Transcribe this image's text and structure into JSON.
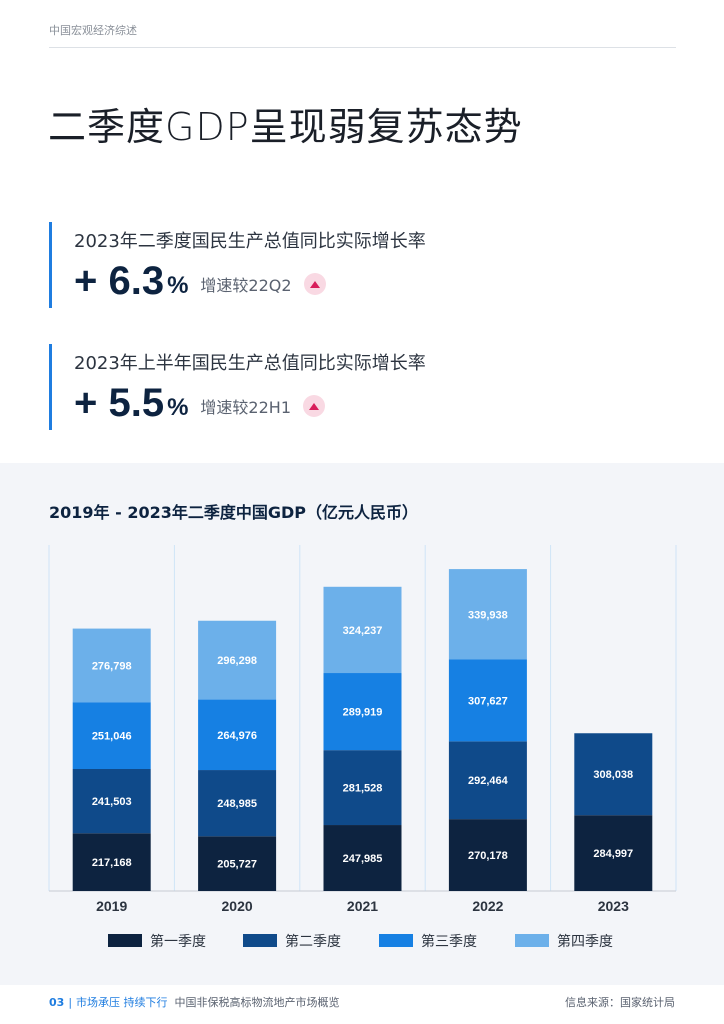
{
  "header": {
    "label": "中国宏观经济综述"
  },
  "page_title": "二季度GDP呈现弱复苏态势",
  "kpis": [
    {
      "caption": "2023年二季度国民生产总值同比实际增长率",
      "value": "+ 6.3",
      "unit": "%",
      "note": "增速较22Q2",
      "trend": "up"
    },
    {
      "caption": "2023年上半年国民生产总值同比实际增长率",
      "value": "+ 5.5",
      "unit": "%",
      "note": "增速较22H1",
      "trend": "up"
    }
  ],
  "colors": {
    "q1": "#0d2340",
    "q2": "#0f4a8a",
    "q3": "#1680e3",
    "q4": "#6cb0ea",
    "accent": "#1f7de0",
    "up": "#d81e5b",
    "grid": "#cfe4f7"
  },
  "chart_data": {
    "type": "bar",
    "stacked": true,
    "title": "2019年 - 2023年二季度中国GDP（亿元人民币）",
    "categories": [
      "2019",
      "2020",
      "2021",
      "2022",
      "2023"
    ],
    "series": [
      {
        "name": "第一季度",
        "values": [
          217168,
          205727,
          247985,
          270178,
          284997
        ]
      },
      {
        "name": "第二季度",
        "values": [
          241503,
          248985,
          281528,
          292464,
          308038
        ]
      },
      {
        "name": "第三季度",
        "values": [
          251046,
          264976,
          289919,
          307627,
          null
        ]
      },
      {
        "name": "第四季度",
        "values": [
          276798,
          296298,
          324237,
          339938,
          null
        ]
      }
    ],
    "legend_position": "bottom",
    "ylim": [
      0,
      1300000
    ]
  },
  "footer": {
    "page_number": "03",
    "section": "市场承压 持续下行",
    "report": "中国非保税高标物流地产市场概览",
    "source": "信息来源：国家统计局"
  }
}
